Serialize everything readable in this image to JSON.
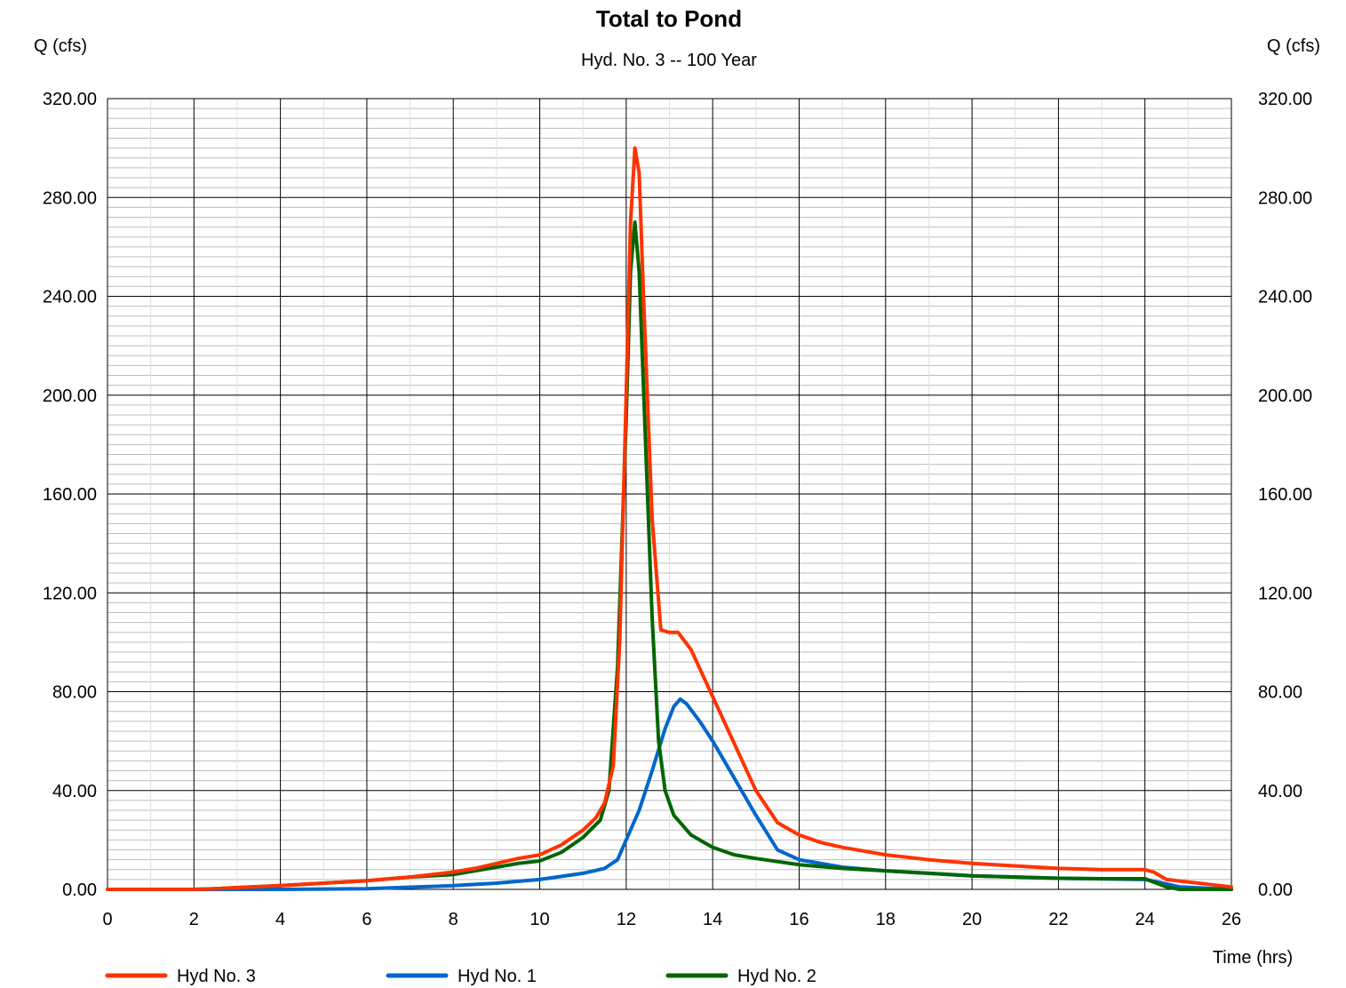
{
  "chart_data": {
    "type": "line",
    "title": "Total to Pond",
    "subtitle": "Hyd. No. 3 -- 100 Year",
    "ylabel_left": "Q (cfs)",
    "ylabel_right": "Q (cfs)",
    "xlabel": "Time (hrs)",
    "xlim": [
      0,
      26
    ],
    "ylim": [
      0,
      320
    ],
    "x_ticks": [
      "0",
      "2",
      "4",
      "6",
      "8",
      "10",
      "12",
      "14",
      "16",
      "18",
      "20",
      "22",
      "24",
      "26"
    ],
    "y_ticks": [
      "0.00",
      "40.00",
      "80.00",
      "120.00",
      "160.00",
      "200.00",
      "240.00",
      "280.00",
      "320.00"
    ],
    "grid": true,
    "legend_position": "bottom",
    "series": [
      {
        "name": "Hyd No. 3",
        "color": "#ff3300",
        "points": [
          [
            0,
            0
          ],
          [
            2,
            0
          ],
          [
            2.5,
            0.3
          ],
          [
            4,
            1.5
          ],
          [
            6,
            3.5
          ],
          [
            7,
            5
          ],
          [
            8,
            7
          ],
          [
            8.5,
            8.5
          ],
          [
            9,
            10.5
          ],
          [
            9.5,
            12.5
          ],
          [
            10,
            14
          ],
          [
            10.5,
            18
          ],
          [
            11,
            24
          ],
          [
            11.3,
            29
          ],
          [
            11.5,
            35
          ],
          [
            11.7,
            50
          ],
          [
            11.85,
            100
          ],
          [
            12.0,
            200
          ],
          [
            12.1,
            270
          ],
          [
            12.2,
            300
          ],
          [
            12.3,
            290
          ],
          [
            12.4,
            240
          ],
          [
            12.6,
            150
          ],
          [
            12.8,
            105
          ],
          [
            13.0,
            104
          ],
          [
            13.2,
            104
          ],
          [
            13.5,
            97
          ],
          [
            14,
            78
          ],
          [
            14.5,
            59
          ],
          [
            15,
            40
          ],
          [
            15.5,
            27
          ],
          [
            16,
            22
          ],
          [
            16.5,
            19
          ],
          [
            17,
            17
          ],
          [
            18,
            14
          ],
          [
            19,
            12
          ],
          [
            20,
            10.5
          ],
          [
            21,
            9.5
          ],
          [
            22,
            8.5
          ],
          [
            23,
            8
          ],
          [
            24,
            8
          ],
          [
            24.2,
            7
          ],
          [
            24.5,
            4
          ],
          [
            25,
            3
          ],
          [
            26,
            1
          ]
        ]
      },
      {
        "name": "Hyd No. 1",
        "color": "#0066cc",
        "points": [
          [
            0,
            0
          ],
          [
            4,
            0
          ],
          [
            6,
            0.3
          ],
          [
            8,
            1.5
          ],
          [
            9,
            2.5
          ],
          [
            10,
            4
          ],
          [
            11,
            6.5
          ],
          [
            11.5,
            8.5
          ],
          [
            11.8,
            12
          ],
          [
            12,
            20
          ],
          [
            12.3,
            32
          ],
          [
            12.6,
            48
          ],
          [
            12.9,
            65
          ],
          [
            13.1,
            74
          ],
          [
            13.25,
            77
          ],
          [
            13.4,
            75
          ],
          [
            13.7,
            68
          ],
          [
            14,
            60
          ],
          [
            14.5,
            45
          ],
          [
            15,
            30
          ],
          [
            15.5,
            16
          ],
          [
            16,
            12
          ],
          [
            17,
            9
          ],
          [
            18,
            7.5
          ],
          [
            20,
            5.5
          ],
          [
            22,
            4.5
          ],
          [
            24,
            4
          ],
          [
            24.3,
            3
          ],
          [
            24.8,
            1
          ],
          [
            26,
            0
          ]
        ]
      },
      {
        "name": "Hyd No. 2",
        "color": "#006600",
        "points": [
          [
            0,
            0
          ],
          [
            2,
            0
          ],
          [
            2.5,
            0.3
          ],
          [
            4,
            1.5
          ],
          [
            6,
            3.5
          ],
          [
            7,
            5
          ],
          [
            8,
            6
          ],
          [
            8.5,
            7.5
          ],
          [
            9,
            9
          ],
          [
            9.5,
            10.5
          ],
          [
            10,
            11.5
          ],
          [
            10.5,
            15
          ],
          [
            11,
            21
          ],
          [
            11.4,
            28
          ],
          [
            11.6,
            40
          ],
          [
            11.8,
            90
          ],
          [
            12.0,
            190
          ],
          [
            12.1,
            250
          ],
          [
            12.2,
            270
          ],
          [
            12.3,
            250
          ],
          [
            12.45,
            180
          ],
          [
            12.6,
            110
          ],
          [
            12.75,
            60
          ],
          [
            12.9,
            40
          ],
          [
            13.1,
            30
          ],
          [
            13.5,
            22
          ],
          [
            14,
            17
          ],
          [
            14.5,
            14
          ],
          [
            15,
            12.5
          ],
          [
            16,
            10
          ],
          [
            17,
            8.5
          ],
          [
            18,
            7.5
          ],
          [
            19,
            6.5
          ],
          [
            20,
            5.5
          ],
          [
            21,
            5
          ],
          [
            22,
            4.5
          ],
          [
            23,
            4.3
          ],
          [
            24,
            4.3
          ],
          [
            24.2,
            3
          ],
          [
            24.5,
            1
          ],
          [
            24.8,
            0
          ],
          [
            26,
            0
          ]
        ]
      }
    ]
  }
}
